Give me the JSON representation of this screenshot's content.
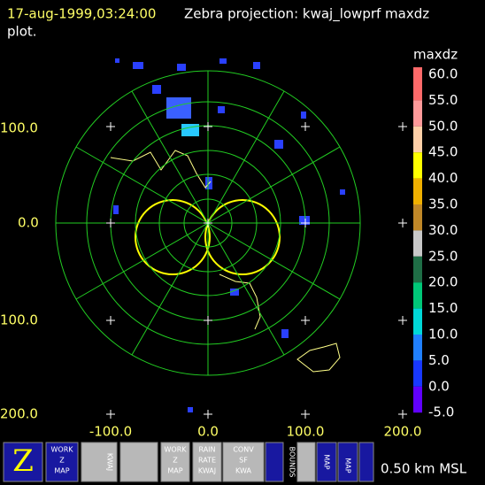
{
  "header": {
    "time": "17-aug-1999,03:24:00",
    "title": "Zebra projection: kwaj_lowprf maxdz",
    "title_cont": "plot."
  },
  "colorbar": {
    "field": "maxdz",
    "labels": [
      "60.0",
      "55.0",
      "50.0",
      "45.0",
      "40.0",
      "35.0",
      "30.0",
      "25.0",
      "20.0",
      "15.0",
      "10.0",
      "5.0",
      "0.0",
      "-5.0"
    ],
    "colors": [
      "#ff6a6a",
      "#ff9a9a",
      "#ffd0a8",
      "#ffff00",
      "#f0b000",
      "#c08828",
      "#c8c8c8",
      "#1f6e46",
      "#00c878",
      "#00d8d8",
      "#2080ff",
      "#1838ff",
      "#6000ff"
    ]
  },
  "axes": {
    "y_labels": [
      "100.0",
      "0.0",
      "100.0",
      "200.0"
    ],
    "x_labels": [
      "-100.0",
      "0.0",
      "100.0",
      "200.0"
    ]
  },
  "toolbar": {
    "work_map": [
      "WORK",
      "Z",
      "MAP"
    ],
    "kwaj": "KWAJ",
    "rain_rate": [
      "RAIN",
      "RATE",
      "KWAJ"
    ],
    "conv": [
      "CONV",
      "SF",
      "KWA"
    ],
    "bounds": "BOUNDS",
    "map": "MAP",
    "altitude": "0.50 km MSL"
  }
}
